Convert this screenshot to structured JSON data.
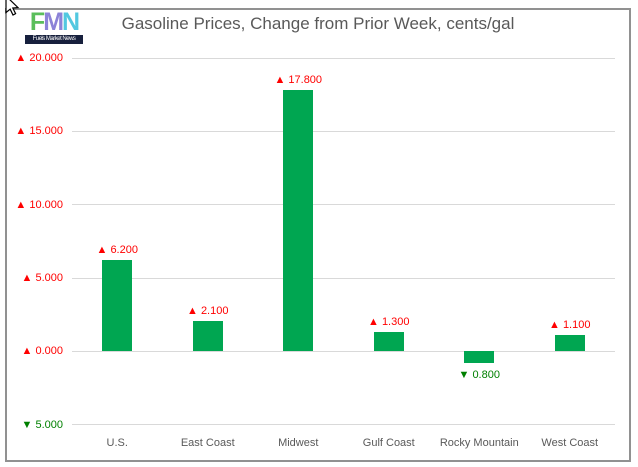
{
  "logo": {
    "letters": [
      {
        "char": "F",
        "color": "#5ABE5B"
      },
      {
        "char": "M",
        "color": "#8C83D8"
      },
      {
        "char": "N",
        "color": "#52C8E0"
      }
    ],
    "subtitle": "Fuels Market News",
    "subtitle_bg": "#17203D"
  },
  "chart_data": {
    "type": "bar",
    "title": "Gasoline Prices, Change from Prior Week, cents/gal",
    "categories": [
      "U.S.",
      "East Coast",
      "Midwest",
      "Gulf Coast",
      "Rocky Mountain",
      "West Coast"
    ],
    "values": [
      6.2,
      2.1,
      17.8,
      1.3,
      -0.8,
      1.1
    ],
    "data_labels": [
      "▲ 6.200",
      "▲ 2.100",
      "▲ 17.800",
      "▲ 1.300",
      "▼ 0.800",
      "▲ 1.100"
    ],
    "ylim": [
      -5,
      20
    ],
    "ytick_values": [
      20,
      15,
      10,
      5,
      0,
      -5
    ],
    "ytick_labels": [
      "▲ 20.000",
      "▲ 15.000",
      "▲ 10.000",
      "▲ 5.000",
      "▲ 0.000",
      "▼ 5.000"
    ],
    "grid": true,
    "legend": "none",
    "xlabel": "",
    "ylabel": "",
    "colors": {
      "bar": "#00A651",
      "up_label": "#FF0000",
      "down_label": "#008000",
      "gridline": "#D9D9D9",
      "title_text": "#595959",
      "axis_text": "#595959",
      "frame_border": "#919191"
    }
  }
}
